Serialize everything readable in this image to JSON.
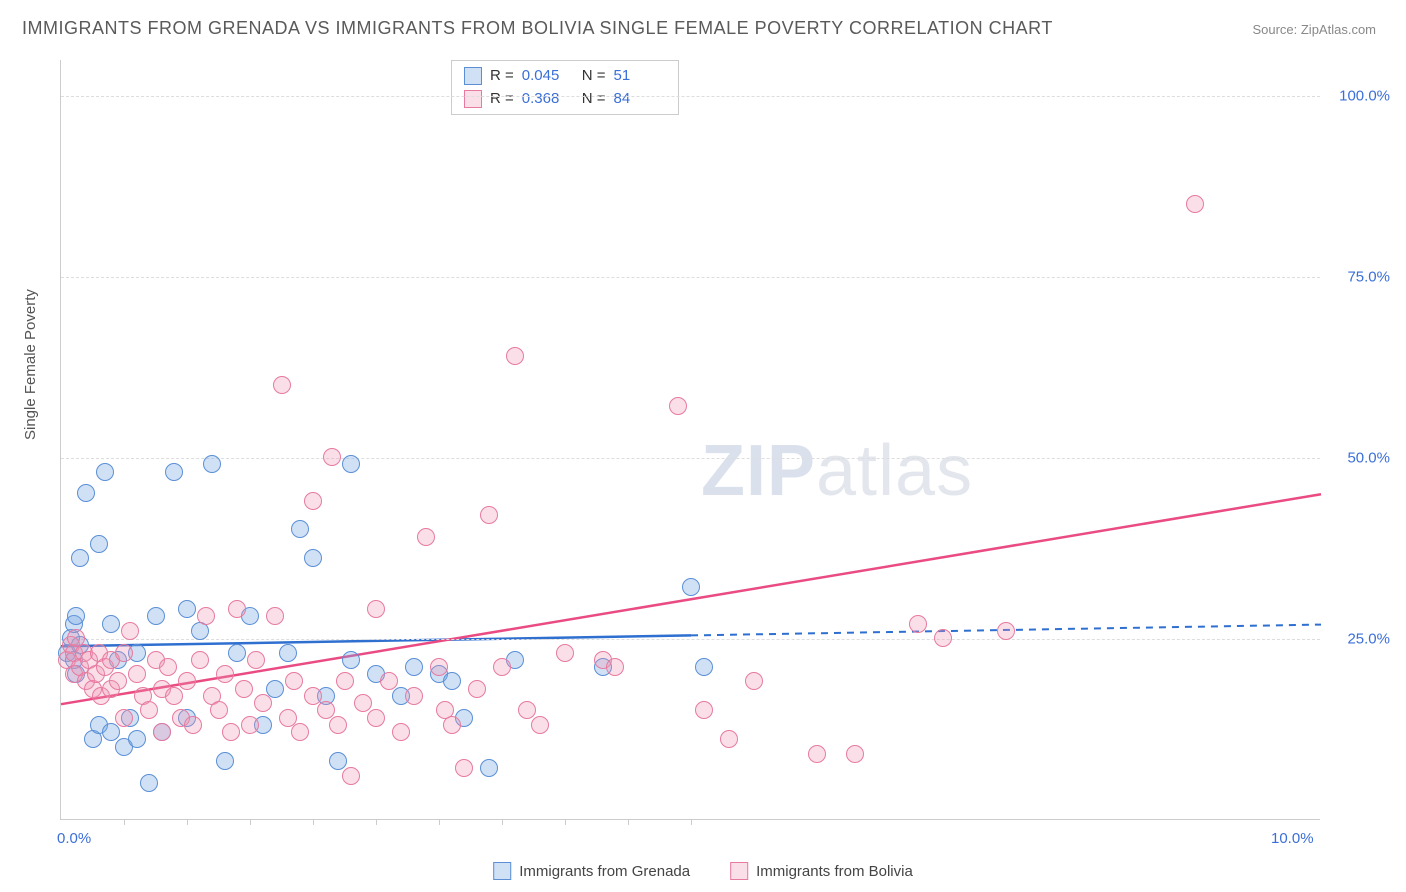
{
  "title": "IMMIGRANTS FROM GRENADA VS IMMIGRANTS FROM BOLIVIA SINGLE FEMALE POVERTY CORRELATION CHART",
  "source": "Source: ZipAtlas.com",
  "y_axis_label": "Single Female Poverty",
  "watermark_bold": "ZIP",
  "watermark_rest": "atlas",
  "chart": {
    "type": "scatter",
    "background_color": "#ffffff",
    "grid_color": "#dddddd",
    "axis_color": "#cccccc",
    "xlim": [
      0,
      10
    ],
    "ylim": [
      0,
      105
    ],
    "ytick_values": [
      25,
      50,
      75,
      100
    ],
    "ytick_labels": [
      "25.0%",
      "50.0%",
      "75.0%",
      "100.0%"
    ],
    "xtick_labels": {
      "0": "0.0%",
      "10": "10.0%"
    },
    "xtick_positions": [
      0.5,
      1.0,
      1.5,
      2.0,
      2.5,
      3.0,
      3.5,
      4.0,
      4.5,
      5.0
    ],
    "point_radius": 9,
    "series": [
      {
        "name_key": "grenada",
        "label": "Immigrants from Grenada",
        "fill": "rgba(120,170,230,0.35)",
        "stroke": "#5a8fd6",
        "trend_color": "#2e6fd0",
        "R": "0.045",
        "N": "51",
        "trend": {
          "x1": 0,
          "y1": 24.0,
          "x2_solid": 5.0,
          "y2_solid": 25.5,
          "x2_dash": 10.0,
          "y2_dash": 27.0
        },
        "points": [
          [
            0.05,
            23
          ],
          [
            0.08,
            25
          ],
          [
            0.1,
            22
          ],
          [
            0.1,
            27
          ],
          [
            0.12,
            20
          ],
          [
            0.12,
            28
          ],
          [
            0.15,
            24
          ],
          [
            0.15,
            36
          ],
          [
            0.2,
            45
          ],
          [
            0.25,
            11
          ],
          [
            0.3,
            38
          ],
          [
            0.3,
            13
          ],
          [
            0.35,
            48
          ],
          [
            0.4,
            27
          ],
          [
            0.4,
            12
          ],
          [
            0.45,
            22
          ],
          [
            0.5,
            10
          ],
          [
            0.55,
            14
          ],
          [
            0.6,
            23
          ],
          [
            0.6,
            11
          ],
          [
            0.7,
            5
          ],
          [
            0.75,
            28
          ],
          [
            0.8,
            12
          ],
          [
            0.9,
            48
          ],
          [
            1.0,
            14
          ],
          [
            1.0,
            29
          ],
          [
            1.1,
            26
          ],
          [
            1.2,
            49
          ],
          [
            1.3,
            8
          ],
          [
            1.4,
            23
          ],
          [
            1.5,
            28
          ],
          [
            1.6,
            13
          ],
          [
            1.7,
            18
          ],
          [
            1.8,
            23
          ],
          [
            1.9,
            40
          ],
          [
            2.0,
            36
          ],
          [
            2.1,
            17
          ],
          [
            2.2,
            8
          ],
          [
            2.3,
            49
          ],
          [
            2.3,
            22
          ],
          [
            2.5,
            20
          ],
          [
            2.7,
            17
          ],
          [
            2.8,
            21
          ],
          [
            3.0,
            20
          ],
          [
            3.1,
            19
          ],
          [
            3.2,
            14
          ],
          [
            3.4,
            7
          ],
          [
            3.6,
            22
          ],
          [
            4.3,
            21
          ],
          [
            5.0,
            32
          ],
          [
            5.1,
            21
          ]
        ]
      },
      {
        "name_key": "bolivia",
        "label": "Immigrants from Bolivia",
        "fill": "rgba(240,150,180,0.30)",
        "stroke": "#e77aa0",
        "trend_color": "#e94b82",
        "R": "0.368",
        "N": "84",
        "trend": {
          "x1": 0,
          "y1": 16.0,
          "x2_solid": 10.0,
          "y2_solid": 45.0,
          "x2_dash": 10.0,
          "y2_dash": 45.0
        },
        "points": [
          [
            0.05,
            22
          ],
          [
            0.08,
            24
          ],
          [
            0.1,
            20
          ],
          [
            0.1,
            23
          ],
          [
            0.12,
            25
          ],
          [
            0.15,
            21
          ],
          [
            0.18,
            23
          ],
          [
            0.2,
            19
          ],
          [
            0.22,
            22
          ],
          [
            0.25,
            18
          ],
          [
            0.28,
            20
          ],
          [
            0.3,
            23
          ],
          [
            0.32,
            17
          ],
          [
            0.35,
            21
          ],
          [
            0.4,
            18
          ],
          [
            0.4,
            22
          ],
          [
            0.45,
            19
          ],
          [
            0.5,
            23
          ],
          [
            0.5,
            14
          ],
          [
            0.55,
            26
          ],
          [
            0.6,
            20
          ],
          [
            0.65,
            17
          ],
          [
            0.7,
            15
          ],
          [
            0.75,
            22
          ],
          [
            0.8,
            18
          ],
          [
            0.8,
            12
          ],
          [
            0.85,
            21
          ],
          [
            0.9,
            17
          ],
          [
            0.95,
            14
          ],
          [
            1.0,
            19
          ],
          [
            1.05,
            13
          ],
          [
            1.1,
            22
          ],
          [
            1.15,
            28
          ],
          [
            1.2,
            17
          ],
          [
            1.25,
            15
          ],
          [
            1.3,
            20
          ],
          [
            1.35,
            12
          ],
          [
            1.4,
            29
          ],
          [
            1.45,
            18
          ],
          [
            1.5,
            13
          ],
          [
            1.55,
            22
          ],
          [
            1.6,
            16
          ],
          [
            1.7,
            28
          ],
          [
            1.75,
            60
          ],
          [
            1.8,
            14
          ],
          [
            1.85,
            19
          ],
          [
            1.9,
            12
          ],
          [
            2.0,
            17
          ],
          [
            2.0,
            44
          ],
          [
            2.1,
            15
          ],
          [
            2.15,
            50
          ],
          [
            2.2,
            13
          ],
          [
            2.25,
            19
          ],
          [
            2.3,
            6
          ],
          [
            2.4,
            16
          ],
          [
            2.5,
            29
          ],
          [
            2.5,
            14
          ],
          [
            2.6,
            19
          ],
          [
            2.7,
            12
          ],
          [
            2.8,
            17
          ],
          [
            2.9,
            39
          ],
          [
            3.0,
            21
          ],
          [
            3.05,
            15
          ],
          [
            3.1,
            13
          ],
          [
            3.2,
            7
          ],
          [
            3.3,
            18
          ],
          [
            3.4,
            42
          ],
          [
            3.5,
            21
          ],
          [
            3.6,
            64
          ],
          [
            3.7,
            15
          ],
          [
            3.8,
            13
          ],
          [
            4.0,
            23
          ],
          [
            4.3,
            22
          ],
          [
            4.4,
            21
          ],
          [
            4.9,
            57
          ],
          [
            5.1,
            15
          ],
          [
            5.3,
            11
          ],
          [
            5.5,
            19
          ],
          [
            6.0,
            9
          ],
          [
            6.3,
            9
          ],
          [
            6.8,
            27
          ],
          [
            7.0,
            25
          ],
          [
            7.5,
            26
          ],
          [
            9.0,
            85
          ]
        ]
      }
    ]
  },
  "label_fontsize": 15,
  "title_fontsize": 18,
  "tick_color": "#3b6fd8"
}
